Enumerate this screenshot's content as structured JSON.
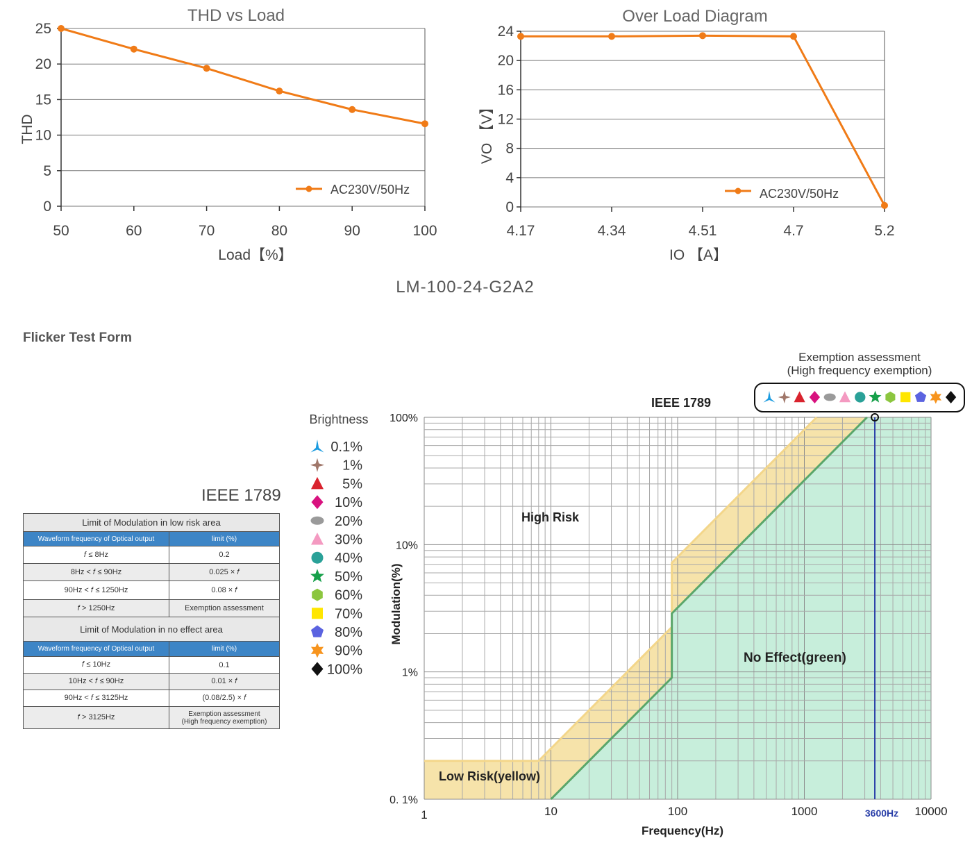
{
  "chart_data": [
    {
      "type": "line",
      "title": "THD vs Load",
      "xlabel": "Load【%】",
      "ylabel": "THD",
      "x": [
        50,
        60,
        70,
        80,
        90,
        100
      ],
      "xlim": [
        50,
        100
      ],
      "ylim": [
        0,
        25
      ],
      "yticks": [
        0,
        5,
        10,
        15,
        20,
        25
      ],
      "grid": true,
      "legend_position": "bottom-right",
      "series": [
        {
          "name": "AC230V/50Hz",
          "color": "#f07b17",
          "values": [
            25,
            22.1,
            19.4,
            16.2,
            13.6,
            11.6
          ]
        }
      ]
    },
    {
      "type": "line",
      "title": "Over Load Diagram",
      "xlabel": "IO 【A】",
      "ylabel": "VO 【V】",
      "categories": [
        "4.17",
        "4.34",
        "4.51",
        "4.7",
        "5.2"
      ],
      "ylim": [
        0,
        24
      ],
      "yticks": [
        0,
        4,
        8,
        12,
        16,
        20,
        24
      ],
      "grid": true,
      "legend_position": "bottom-right",
      "series": [
        {
          "name": "AC230V/50Hz",
          "color": "#f07b17",
          "values": [
            23.3,
            23.3,
            23.4,
            23.3,
            0.2
          ]
        }
      ]
    },
    {
      "type": "area",
      "title": "IEEE 1789",
      "xlabel": "Frequency(Hz)",
      "ylabel": "Modulation(%)",
      "xscale": "log",
      "yscale": "log",
      "xlim": [
        1,
        10000
      ],
      "ylim": [
        0.1,
        100
      ],
      "xtick_labels": [
        "1",
        "10",
        "100",
        "1000",
        "10000"
      ],
      "ytick_labels": [
        "0. 1%",
        "1%",
        "10%",
        "100%"
      ],
      "series": [
        {
          "name": "Low Risk(yellow)",
          "color": "#f6e3aa",
          "x": [
            1,
            8,
            90,
            90,
            1250
          ],
          "y": [
            0.2,
            0.2,
            2.25,
            7.2,
            100
          ]
        },
        {
          "name": "No Effect(green)",
          "color": "#c7eedb",
          "x": [
            10,
            90,
            90,
            3125
          ],
          "y": [
            0.1,
            0.9,
            2.88,
            100
          ]
        }
      ],
      "annotations": [
        "High Risk",
        "Low Risk(yellow)",
        "No Effect(green)",
        "3600Hz"
      ],
      "marker_line": {
        "x": 3600,
        "label": "3600Hz",
        "color": "#2a3fa8"
      }
    }
  ],
  "model": "LM-100-24-G2A2",
  "flicker_title": "Flicker Test Form",
  "ieee_table_title": "IEEE 1789",
  "low_risk_table": {
    "title": "Limit of Modulation in low risk area",
    "headers": [
      "Waveform frequency of Optical output",
      "limit (%)"
    ],
    "rows": [
      [
        "𝑓 ≤ 8Hz",
        "0.2"
      ],
      [
        "8Hz < 𝑓 ≤ 90Hz",
        "0.025 × 𝑓"
      ],
      [
        "90Hz < 𝑓 ≤ 1250Hz",
        "0.08 × 𝑓"
      ],
      [
        "𝑓 > 1250Hz",
        "Exemption assessment"
      ]
    ]
  },
  "no_effect_table": {
    "title": "Limit of Modulation in no effect area",
    "headers": [
      "Waveform frequency of Optical output",
      "limit (%)"
    ],
    "rows": [
      [
        "𝑓 ≤ 10Hz",
        "0.1"
      ],
      [
        "10Hz < 𝑓 ≤ 90Hz",
        "0.01 × 𝑓"
      ],
      [
        "90Hz < 𝑓 ≤ 3125Hz",
        "(0.08/2.5) × 𝑓"
      ],
      [
        "𝑓 > 3125Hz",
        "Exemption assessment\n(High frequency exemption)"
      ]
    ]
  },
  "brightness": {
    "title": "Brightness",
    "items": [
      {
        "label": "0.1%",
        "shape": "tri-star",
        "color": "#1a9be0"
      },
      {
        "label": "1%",
        "shape": "four-star",
        "color": "#a0776a"
      },
      {
        "label": "5%",
        "shape": "triangle",
        "color": "#d9232e"
      },
      {
        "label": "10%",
        "shape": "diamond",
        "color": "#d8127f"
      },
      {
        "label": "20%",
        "shape": "ellipse",
        "color": "#9a9a9a"
      },
      {
        "label": "30%",
        "shape": "triangle",
        "color": "#f49ac1"
      },
      {
        "label": "40%",
        "shape": "circle",
        "color": "#2aa198"
      },
      {
        "label": "50%",
        "shape": "star",
        "color": "#17a04a"
      },
      {
        "label": "60%",
        "shape": "hexagon",
        "color": "#8cc63f"
      },
      {
        "label": "70%",
        "shape": "square",
        "color": "#ffe600"
      },
      {
        "label": "80%",
        "shape": "pentagon",
        "color": "#5b63e0"
      },
      {
        "label": "90%",
        "shape": "star6",
        "color": "#f7941d"
      },
      {
        "label": "100%",
        "shape": "diamond",
        "color": "#111111"
      }
    ]
  },
  "exemption": {
    "line1": "Exemption assessment",
    "line2": "(High frequency exemption)"
  }
}
